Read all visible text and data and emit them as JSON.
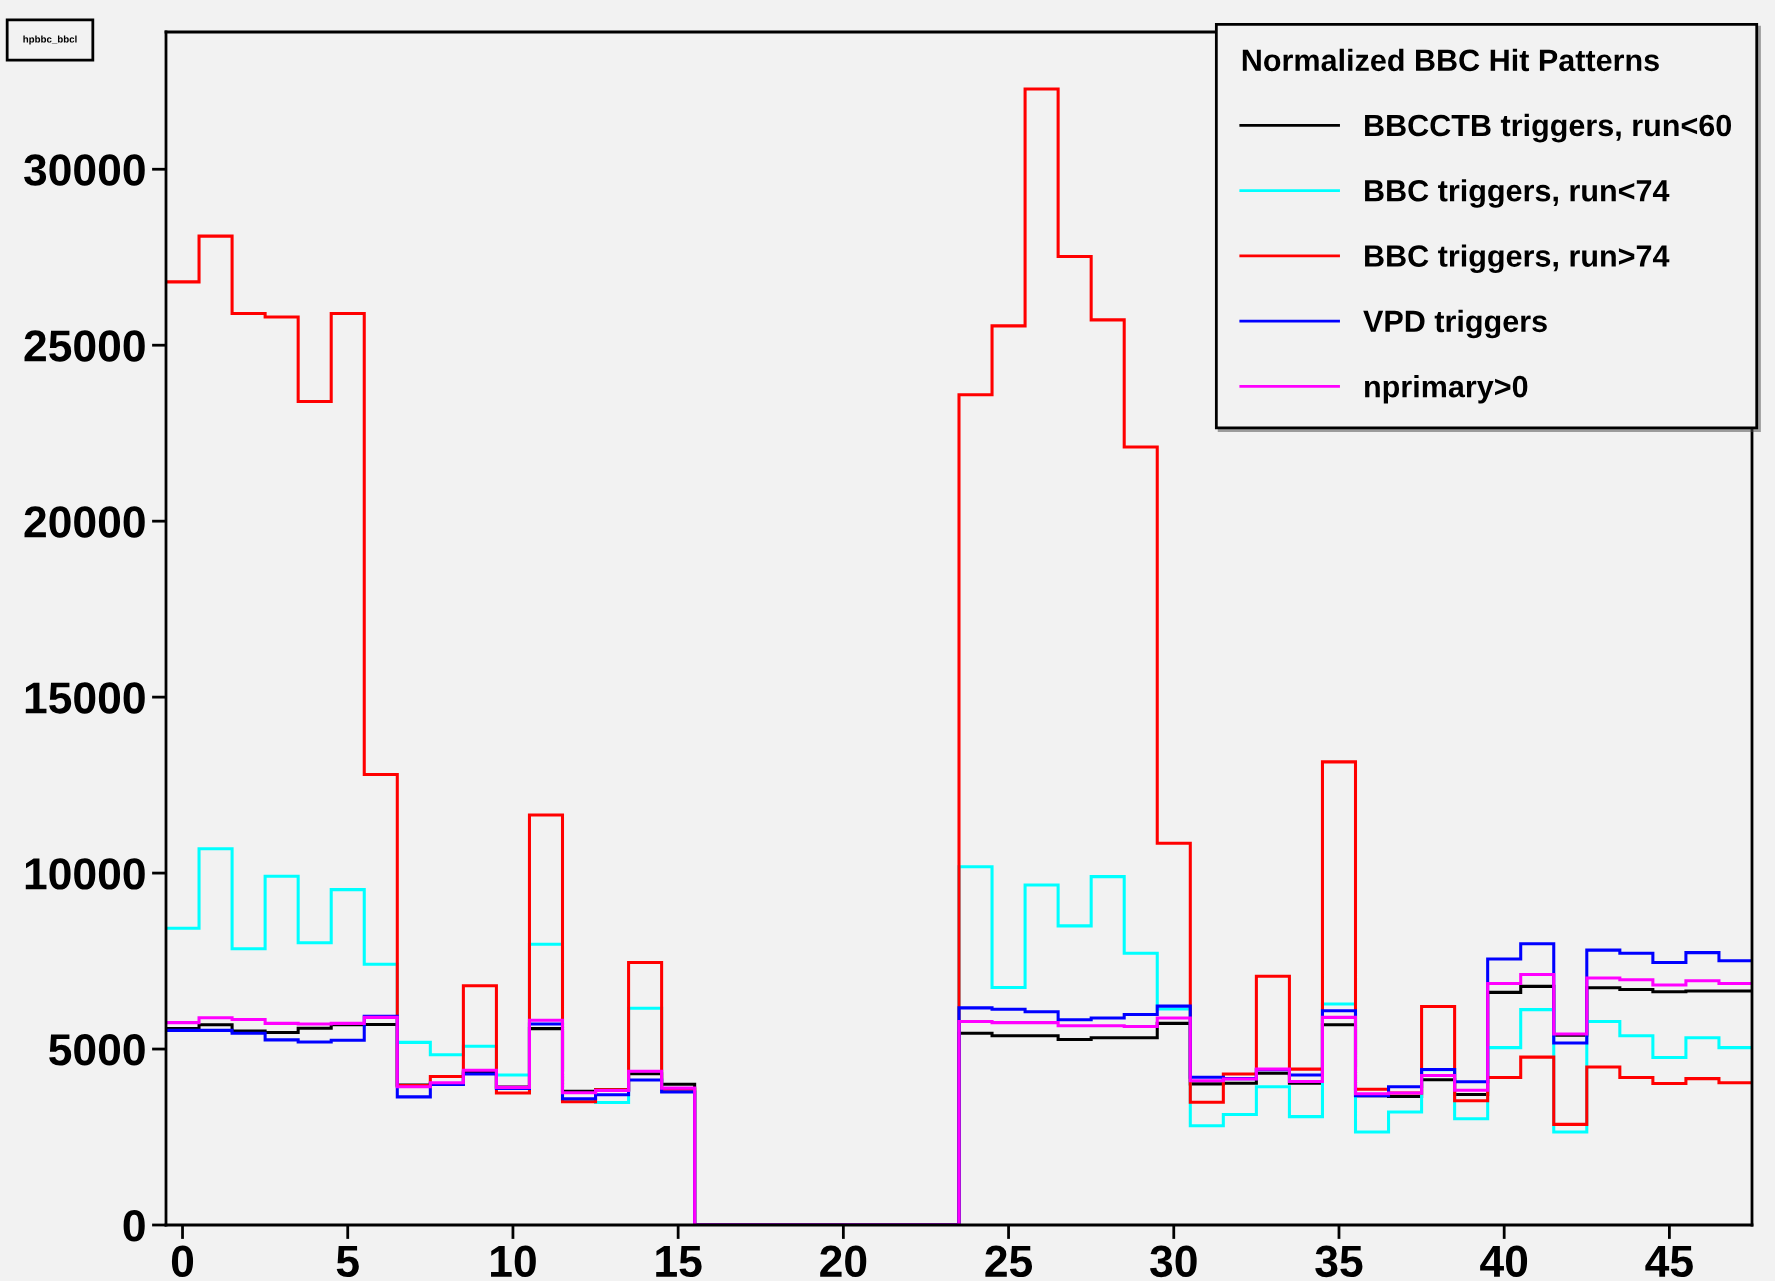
{
  "chart_data": {
    "type": "histogram",
    "annotations": [
      "hpbbc_bbcl"
    ],
    "legend_title": "Normalized BBC Hit Patterns",
    "bins": [
      -0.5,
      0.5,
      1.5,
      2.5,
      3.5,
      4.5,
      5.5,
      6.5,
      7.5,
      8.5,
      9.5,
      10.5,
      11.5,
      12.5,
      13.5,
      14.5,
      15.5,
      16.5,
      17.5,
      18.5,
      19.5,
      20.5,
      21.5,
      22.5,
      23.5,
      24.5,
      25.5,
      26.5,
      27.5,
      28.5,
      29.5,
      30.5,
      31.5,
      32.5,
      33.5,
      34.5,
      35.5,
      36.5,
      37.5,
      38.5,
      39.5,
      40.5,
      41.5,
      42.5,
      43.5,
      44.5,
      45.5,
      46.5,
      47.5
    ],
    "series": [
      {
        "name": "BBCCTB triggers, run<60",
        "color": "#000000",
        "values": [
          5580,
          5690,
          5510,
          5470,
          5590,
          5690,
          5700,
          3980,
          4010,
          4350,
          3920,
          5580,
          3800,
          3840,
          4300,
          4000,
          0,
          0,
          0,
          0,
          0,
          0,
          0,
          0,
          5450,
          5380,
          5380,
          5270,
          5320,
          5320,
          5730,
          4010,
          4030,
          4310,
          4030,
          5690,
          3670,
          3650,
          4130,
          3710,
          6610,
          6780,
          5390,
          6740,
          6690,
          6630,
          6650,
          6650
        ]
      },
      {
        "name": "BBC triggers, run<74",
        "color": "#00ffff",
        "values": [
          8430,
          10690,
          7850,
          9910,
          8020,
          9530,
          7410,
          5190,
          4840,
          5080,
          4260,
          7980,
          3550,
          3480,
          6160,
          3800,
          0,
          0,
          0,
          0,
          0,
          0,
          0,
          0,
          10180,
          6750,
          9660,
          8500,
          9900,
          7720,
          6140,
          2820,
          3140,
          3930,
          3080,
          6280,
          2640,
          3210,
          4410,
          3020,
          5040,
          6120,
          2640,
          5780,
          5380,
          4760,
          5320,
          5040
        ]
      },
      {
        "name": "BBC triggers, run>74",
        "color": "#ff0000",
        "values": [
          26800,
          28100,
          25900,
          25800,
          23400,
          25900,
          12800,
          3960,
          4220,
          6800,
          3750,
          11650,
          3500,
          3840,
          7460,
          3860,
          0,
          0,
          0,
          0,
          0,
          0,
          0,
          0,
          23590,
          25550,
          32280,
          27520,
          25720,
          22110,
          10850,
          3490,
          4290,
          7070,
          4430,
          13160,
          3860,
          3750,
          6210,
          3530,
          4190,
          4770,
          2860,
          4490,
          4190,
          4020,
          4160,
          4040
        ]
      },
      {
        "name": "VPD triggers",
        "color": "#0000ff",
        "values": [
          5530,
          5530,
          5450,
          5260,
          5200,
          5250,
          5930,
          3640,
          3990,
          4290,
          3880,
          5710,
          3590,
          3700,
          4120,
          3780,
          0,
          0,
          0,
          0,
          0,
          0,
          0,
          0,
          6170,
          6130,
          6060,
          5830,
          5880,
          5980,
          6220,
          4200,
          4160,
          4410,
          4260,
          6090,
          3670,
          3930,
          4420,
          4070,
          7560,
          7990,
          5170,
          7810,
          7720,
          7460,
          7740,
          7510
        ]
      },
      {
        "name": "nprimary>0",
        "color": "#ff00ff",
        "values": [
          5750,
          5890,
          5840,
          5730,
          5710,
          5730,
          5900,
          3930,
          4040,
          4400,
          3910,
          5820,
          3760,
          3820,
          4370,
          3890,
          0,
          0,
          0,
          0,
          0,
          0,
          0,
          0,
          5780,
          5750,
          5750,
          5660,
          5660,
          5640,
          5880,
          4100,
          4150,
          4430,
          4080,
          5900,
          3730,
          3750,
          4250,
          3830,
          6860,
          7120,
          5430,
          7020,
          6970,
          6820,
          6940,
          6860
        ]
      }
    ],
    "xlim": [
      -0.5,
      47.5
    ],
    "xticks": [
      0,
      5,
      10,
      15,
      20,
      25,
      30,
      35,
      40,
      45
    ],
    "ylim": [
      0,
      33900
    ],
    "yticks": [
      0,
      5000,
      10000,
      15000,
      20000,
      25000,
      30000
    ],
    "legend": "top right",
    "grid": false
  }
}
